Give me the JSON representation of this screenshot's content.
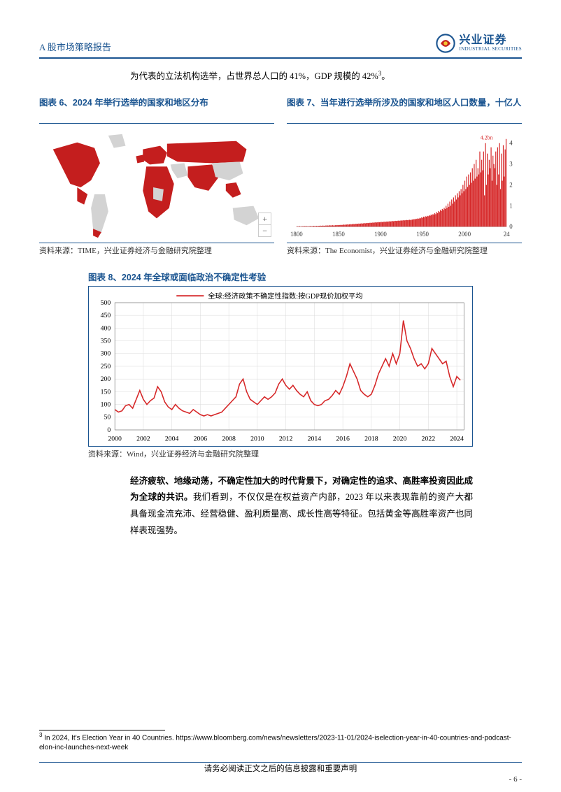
{
  "colors": {
    "brand_blue": "#1a5490",
    "chart_red": "#d62728",
    "map_red": "#c41e1e",
    "map_grey": "#d3d3d3",
    "text_black": "#000000",
    "grid": "#cccccc"
  },
  "header": {
    "report_type": "A 股市场策略报告",
    "logo_cn": "兴业证券",
    "logo_en": "INDUSTRIAL SECURITIES"
  },
  "intro": {
    "text_a": "为代表的立法机构选举，占世界总人口的 41%，GDP 规模的 42%",
    "sup": "3",
    "text_b": "。"
  },
  "figure6": {
    "title": "图表 6、2024 年举行选举的国家和地区分布",
    "source": "资料来源：TIME，兴业证券经济与金融研究院整理",
    "zoom_in": "+",
    "zoom_out": "−"
  },
  "figure7": {
    "title": "图表 7、当年进行选举所涉及的国家和地区人口数量，十亿人",
    "source": "资料来源：The Economist，兴业证券经济与金融研究院整理",
    "annotation": "4.2bn",
    "chart": {
      "type": "bar",
      "x_start": 1800,
      "x_end": 2024,
      "x_ticks": [
        1800,
        1850,
        1900,
        1950,
        2000,
        "24"
      ],
      "y_ticks": [
        0,
        1,
        2,
        3,
        4
      ],
      "ylim": [
        0,
        4.3
      ],
      "bar_color": "#d62728",
      "bg": "#ffffff",
      "values": [
        0.02,
        0.02,
        0.01,
        0.03,
        0.01,
        0.02,
        0.02,
        0.02,
        0.03,
        0.02,
        0.03,
        0.02,
        0.02,
        0.02,
        0.03,
        0.03,
        0.02,
        0.03,
        0.04,
        0.03,
        0.03,
        0.04,
        0.03,
        0.04,
        0.04,
        0.05,
        0.04,
        0.05,
        0.05,
        0.04,
        0.05,
        0.06,
        0.05,
        0.06,
        0.05,
        0.07,
        0.06,
        0.06,
        0.07,
        0.06,
        0.06,
        0.07,
        0.07,
        0.08,
        0.07,
        0.08,
        0.08,
        0.09,
        0.08,
        0.09,
        0.1,
        0.09,
        0.1,
        0.1,
        0.11,
        0.1,
        0.11,
        0.12,
        0.11,
        0.12,
        0.13,
        0.12,
        0.13,
        0.14,
        0.13,
        0.14,
        0.15,
        0.14,
        0.15,
        0.16,
        0.15,
        0.16,
        0.17,
        0.16,
        0.17,
        0.18,
        0.17,
        0.18,
        0.19,
        0.18,
        0.19,
        0.2,
        0.19,
        0.2,
        0.21,
        0.2,
        0.21,
        0.22,
        0.21,
        0.22,
        0.23,
        0.22,
        0.23,
        0.24,
        0.23,
        0.24,
        0.25,
        0.24,
        0.25,
        0.26,
        0.25,
        0.26,
        0.27,
        0.26,
        0.27,
        0.28,
        0.27,
        0.28,
        0.29,
        0.28,
        0.29,
        0.3,
        0.29,
        0.3,
        0.31,
        0.3,
        0.31,
        0.32,
        0.31,
        0.32,
        0.33,
        0.32,
        0.33,
        0.34,
        0.35,
        0.36,
        0.35,
        0.38,
        0.37,
        0.4,
        0.38,
        0.42,
        0.4,
        0.45,
        0.42,
        0.48,
        0.45,
        0.5,
        0.48,
        0.52,
        0.5,
        0.55,
        0.52,
        0.58,
        0.55,
        0.6,
        0.58,
        0.65,
        0.6,
        0.7,
        0.65,
        0.75,
        0.7,
        0.8,
        0.75,
        0.85,
        0.8,
        0.9,
        0.85,
        1.0,
        0.9,
        1.1,
        0.95,
        1.2,
        1.0,
        1.3,
        1.1,
        1.4,
        1.2,
        1.5,
        1.3,
        1.6,
        1.4,
        1.7,
        1.5,
        1.8,
        1.6,
        2.0,
        1.7,
        2.2,
        1.8,
        2.4,
        1.9,
        2.5,
        2.0,
        2.6,
        2.1,
        2.8,
        2.2,
        3.0,
        2.3,
        3.2,
        2.4,
        2.8,
        2.5,
        3.6,
        2.6,
        3.2,
        2.7,
        3.6,
        1.5,
        4.0,
        2.0,
        3.5,
        2.5,
        3.2,
        2.8,
        3.8,
        2.2,
        3.4,
        3.0,
        2.8,
        3.6,
        2.0,
        3.8,
        2.5,
        4.0,
        1.8,
        3.5,
        2.2,
        3.9,
        2.4,
        3.7,
        4.2
      ]
    }
  },
  "figure8": {
    "title": "图表 8、2024 年全球或面临政治不确定性考验",
    "legend": "全球:经济政策不确定性指数:按GDP现价加权平均",
    "source": "资料来源：Wind，兴业证券经济与金融研究院整理",
    "chart": {
      "type": "line",
      "line_color": "#d62728",
      "line_width": 1.6,
      "bg": "#ffffff",
      "grid_color": "#d9d9d9",
      "xlim": [
        2000,
        2024.5
      ],
      "ylim": [
        0,
        500
      ],
      "x_ticks": [
        2000,
        2002,
        2004,
        2006,
        2008,
        2010,
        2012,
        2014,
        2016,
        2018,
        2020,
        2022,
        2024
      ],
      "y_ticks": [
        0,
        50,
        100,
        150,
        200,
        250,
        300,
        350,
        400,
        450,
        500
      ],
      "tick_fontsize": 10,
      "points": [
        [
          2000.0,
          80
        ],
        [
          2000.25,
          70
        ],
        [
          2000.5,
          75
        ],
        [
          2000.75,
          95
        ],
        [
          2001.0,
          100
        ],
        [
          2001.25,
          85
        ],
        [
          2001.5,
          120
        ],
        [
          2001.75,
          155
        ],
        [
          2002.0,
          120
        ],
        [
          2002.25,
          100
        ],
        [
          2002.5,
          115
        ],
        [
          2002.75,
          125
        ],
        [
          2003.0,
          170
        ],
        [
          2003.25,
          150
        ],
        [
          2003.5,
          110
        ],
        [
          2003.75,
          90
        ],
        [
          2004.0,
          80
        ],
        [
          2004.25,
          100
        ],
        [
          2004.5,
          85
        ],
        [
          2004.75,
          75
        ],
        [
          2005.0,
          70
        ],
        [
          2005.25,
          65
        ],
        [
          2005.5,
          80
        ],
        [
          2005.75,
          70
        ],
        [
          2006.0,
          60
        ],
        [
          2006.25,
          55
        ],
        [
          2006.5,
          60
        ],
        [
          2006.75,
          55
        ],
        [
          2007.0,
          60
        ],
        [
          2007.25,
          65
        ],
        [
          2007.5,
          70
        ],
        [
          2007.75,
          85
        ],
        [
          2008.0,
          100
        ],
        [
          2008.25,
          115
        ],
        [
          2008.5,
          130
        ],
        [
          2008.75,
          180
        ],
        [
          2009.0,
          200
        ],
        [
          2009.25,
          150
        ],
        [
          2009.5,
          120
        ],
        [
          2009.75,
          110
        ],
        [
          2010.0,
          100
        ],
        [
          2010.25,
          115
        ],
        [
          2010.5,
          130
        ],
        [
          2010.75,
          120
        ],
        [
          2011.0,
          130
        ],
        [
          2011.25,
          145
        ],
        [
          2011.5,
          180
        ],
        [
          2011.75,
          200
        ],
        [
          2012.0,
          175
        ],
        [
          2012.25,
          160
        ],
        [
          2012.5,
          175
        ],
        [
          2012.75,
          155
        ],
        [
          2013.0,
          140
        ],
        [
          2013.25,
          130
        ],
        [
          2013.5,
          150
        ],
        [
          2013.75,
          115
        ],
        [
          2014.0,
          100
        ],
        [
          2014.25,
          95
        ],
        [
          2014.5,
          100
        ],
        [
          2014.75,
          115
        ],
        [
          2015.0,
          120
        ],
        [
          2015.25,
          135
        ],
        [
          2015.5,
          155
        ],
        [
          2015.75,
          140
        ],
        [
          2016.0,
          170
        ],
        [
          2016.25,
          210
        ],
        [
          2016.5,
          260
        ],
        [
          2016.75,
          230
        ],
        [
          2017.0,
          200
        ],
        [
          2017.25,
          155
        ],
        [
          2017.5,
          140
        ],
        [
          2017.75,
          130
        ],
        [
          2018.0,
          140
        ],
        [
          2018.25,
          175
        ],
        [
          2018.5,
          220
        ],
        [
          2018.75,
          250
        ],
        [
          2019.0,
          280
        ],
        [
          2019.25,
          250
        ],
        [
          2019.5,
          300
        ],
        [
          2019.75,
          260
        ],
        [
          2020.0,
          300
        ],
        [
          2020.25,
          430
        ],
        [
          2020.5,
          350
        ],
        [
          2020.75,
          320
        ],
        [
          2021.0,
          280
        ],
        [
          2021.25,
          250
        ],
        [
          2021.5,
          260
        ],
        [
          2021.75,
          240
        ],
        [
          2022.0,
          260
        ],
        [
          2022.25,
          320
        ],
        [
          2022.5,
          300
        ],
        [
          2022.75,
          280
        ],
        [
          2023.0,
          260
        ],
        [
          2023.25,
          270
        ],
        [
          2023.5,
          210
        ],
        [
          2023.75,
          170
        ],
        [
          2024.0,
          210
        ],
        [
          2024.25,
          195
        ]
      ]
    }
  },
  "body": {
    "bold": "经济疲软、地缘动荡，不确定性加大的时代背景下，对确定性的追求、高胜率投资因此成为全球的共识。",
    "rest": "我们看到，不仅仅是在权益资产内部，2023 年以来表现靠前的资产大都具备现金流充沛、经营稳健、盈利质量高、成长性高等特征。包括黄金等高胜率资产也同样表现强势。"
  },
  "footnote": {
    "num": "3",
    "text": " In 2024, It's Election Year in 40 Countries. https://www.bloomberg.com/news/newsletters/2023-11-01/2024-iselection-year-in-40-countries-and-podcast-elon-inc-launches-next-week"
  },
  "footer": {
    "disclaimer": "请务必阅读正文之后的信息披露和重要声明",
    "page": "- 6 -"
  }
}
